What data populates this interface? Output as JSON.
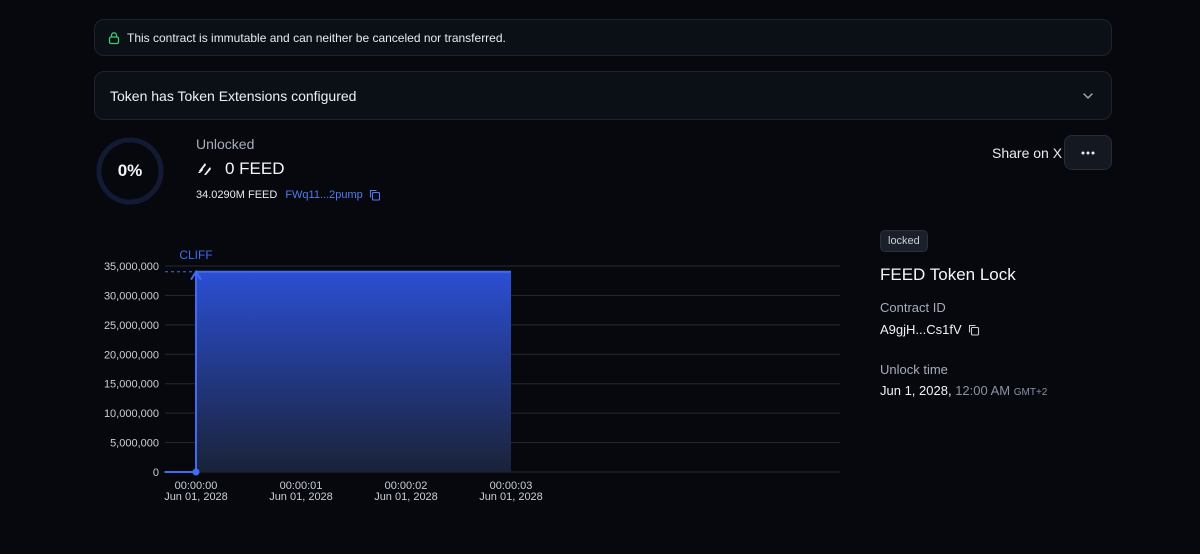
{
  "banner": {
    "text": "This contract is immutable and can neither be canceled nor transferred.",
    "icon": "lock-icon",
    "icon_color": "#3ccf6e"
  },
  "extensions": {
    "text": "Token has Token Extensions configured",
    "icon": "chevron-down-icon"
  },
  "progress": {
    "percent_label": "0%",
    "value": 0
  },
  "unlocked": {
    "label": "Unlocked",
    "amount": "0 FEED",
    "total": "34.0290M FEED",
    "address": "FWq11...2pump"
  },
  "actions": {
    "share_label": "Share on X",
    "more_label": "···"
  },
  "details": {
    "badge": "locked",
    "title": "FEED Token Lock",
    "contract_id_label": "Contract ID",
    "contract_id": "A9gjH...Cs1fV",
    "unlock_time_label": "Unlock time",
    "unlock_date": "Jun 1, 2028,",
    "unlock_time": "12:00 AM",
    "unlock_tz": "GMT+2"
  },
  "chart_data": {
    "type": "area",
    "annotation": "CLIFF",
    "ylim": [
      0,
      35000000
    ],
    "y_ticks": [
      0,
      5000000,
      10000000,
      15000000,
      20000000,
      25000000,
      30000000,
      35000000
    ],
    "y_tick_labels": [
      "0",
      "5,000,000",
      "10,000,000",
      "15,000,000",
      "20,000,000",
      "25,000,000",
      "30,000,000",
      "35,000,000"
    ],
    "x_tick_labels": [
      {
        "time": "00:00:00",
        "date": "Jun 01, 2028"
      },
      {
        "time": "00:00:01",
        "date": "Jun 01, 2028"
      },
      {
        "time": "00:00:02",
        "date": "Jun 01, 2028"
      },
      {
        "time": "00:00:03",
        "date": "Jun 01, 2028"
      }
    ],
    "x_seconds": [
      0,
      1,
      2,
      3
    ],
    "series": [
      {
        "x_seconds": [
          -0.3,
          0,
          0,
          3
        ],
        "y": [
          0,
          0,
          34029000,
          34029000
        ]
      }
    ],
    "colors": {
      "line": "#3f6cf2",
      "fill_top": "#2b4fd4",
      "fill_bottom": "#1a2238",
      "grid": "#242a36",
      "text": "#c9ced8"
    }
  }
}
